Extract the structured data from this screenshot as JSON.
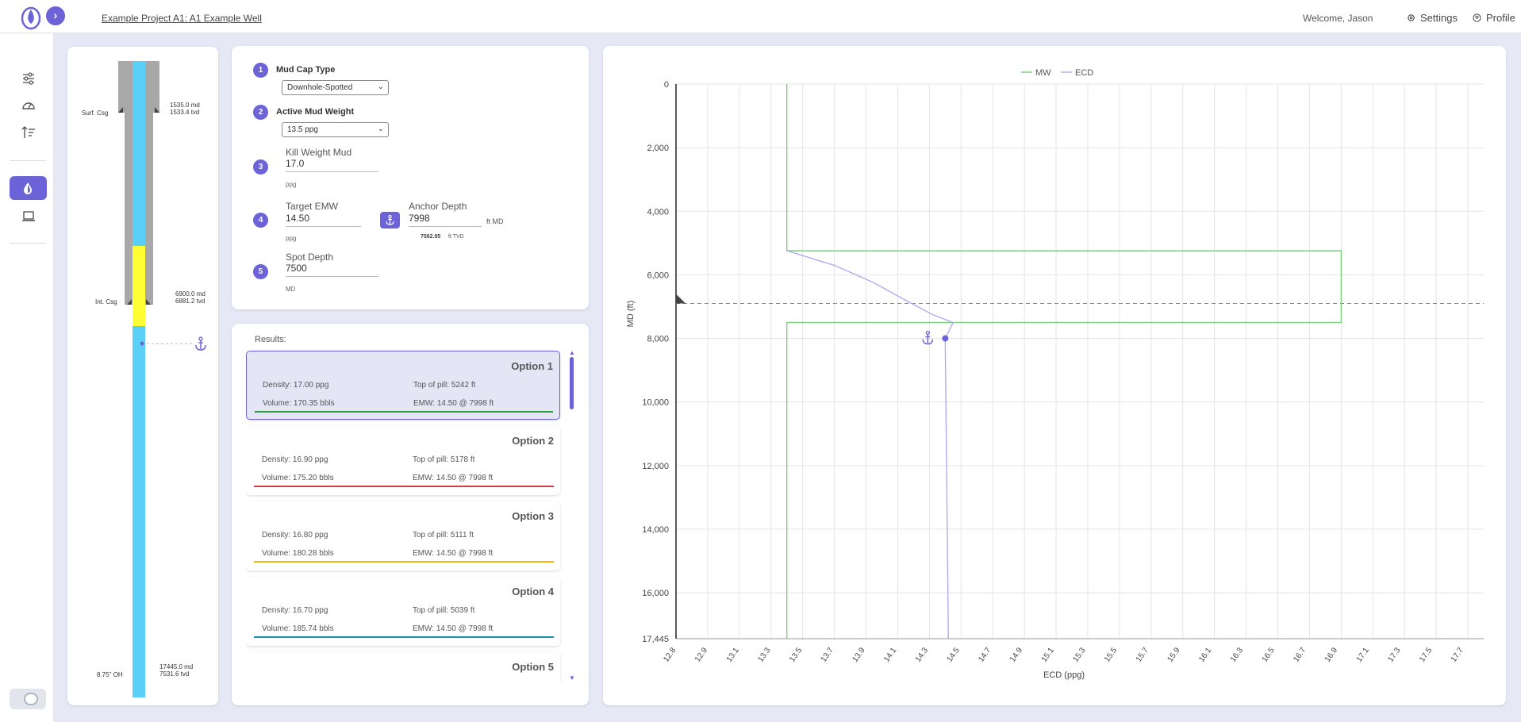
{
  "header": {
    "project_title": "Example Project A1: A1 Example Well",
    "welcome": "Welcome, Jason",
    "settings_label": "Settings",
    "profile_label": "Profile"
  },
  "sidebar": {
    "items": [
      {
        "icon": "sliders-icon"
      },
      {
        "icon": "speedometer-icon"
      },
      {
        "icon": "sort-icon"
      },
      {
        "icon": "drop-icon",
        "active": true
      },
      {
        "icon": "laptop-icon"
      }
    ],
    "accent": "#6c63d9"
  },
  "wellbore": {
    "surf_csg": {
      "label": "Surf. Csg",
      "md": "1535.0 md",
      "tvd": "1533.4 tvd"
    },
    "int_csg": {
      "label": "Int. Csg",
      "md": "6900.0 md",
      "tvd": "6881.2 tvd"
    },
    "oh": {
      "label": "8.75\" OH",
      "md": "17445.0 md",
      "tvd": "7531.6 tvd"
    },
    "colors": {
      "casing": "#a8a8a8",
      "mud": "#5ad0f6",
      "pill": "#ffff33",
      "anchor": "#6c63d9"
    }
  },
  "form": {
    "steps": [
      {
        "num": "1",
        "title": "Mud Cap Type",
        "value": "Downhole-Spotted"
      },
      {
        "num": "2",
        "title": "Active Mud Weight",
        "value": "13.5 ppg"
      },
      {
        "num": "3",
        "label": "Kill Weight Mud",
        "value": "17.0",
        "unit": "ppg"
      },
      {
        "num": "4",
        "label": "Target EMW",
        "value": "14.50",
        "unit": "ppg"
      },
      {
        "num": "5",
        "label": "Spot Depth",
        "value": "7500",
        "unit": "MD"
      }
    ],
    "anchor": {
      "label": "Anchor Depth",
      "value": "7998",
      "unit": "ft MD",
      "tvd_value": "7562.95",
      "tvd_unit": "ft TVD"
    }
  },
  "results": {
    "label": "Results:",
    "options": [
      {
        "title": "Option 1",
        "density": "Density: 17.00 ppg",
        "top": "Top of pill: 5242 ft",
        "volume": "Volume: 170.35 bbls",
        "emw": "EMW: 14.50 @ 7998 ft",
        "color": "#2e9e3e",
        "selected": true
      },
      {
        "title": "Option 2",
        "density": "Density: 16.90 ppg",
        "top": "Top of pill: 5178 ft",
        "volume": "Volume: 175.20 bbls",
        "emw": "EMW: 14.50 @ 7998 ft",
        "color": "#d63b4a"
      },
      {
        "title": "Option 3",
        "density": "Density: 16.80 ppg",
        "top": "Top of pill: 5111 ft",
        "volume": "Volume: 180.28 bbls",
        "emw": "EMW: 14.50 @ 7998 ft",
        "color": "#f2b705"
      },
      {
        "title": "Option 4",
        "density": "Density: 16.70 ppg",
        "top": "Top of pill: 5039 ft",
        "volume": "Volume: 185.74 bbls",
        "emw": "EMW: 14.50 @ 7998 ft",
        "color": "#1f8fb0"
      },
      {
        "title": "Option 5"
      }
    ]
  },
  "chart_data": {
    "type": "line",
    "legend": [
      "MW",
      "ECD"
    ],
    "legend_position": "top",
    "xlabel": "ECD (ppg)",
    "ylabel": "MD (ft)",
    "xlim": [
      12.8,
      17.9
    ],
    "ylim": [
      0,
      17445
    ],
    "y_inverted": true,
    "grid": true,
    "x_ticks": [
      "12.8",
      "12.9",
      "13.1",
      "13.3",
      "13.5",
      "13.7",
      "13.9",
      "14.1",
      "14.3",
      "14.5",
      "14.7",
      "14.9",
      "15.1",
      "15.3",
      "15.5",
      "15.7",
      "15.9",
      "16.1",
      "16.3",
      "16.5",
      "16.7",
      "16.9",
      "17.1",
      "17.3",
      "17.5",
      "17.7"
    ],
    "y_ticks": [
      {
        "v": 0,
        "label": "0"
      },
      {
        "v": 2000,
        "label": "2,000"
      },
      {
        "v": 4000,
        "label": "4,000"
      },
      {
        "v": 6000,
        "label": "6,000"
      },
      {
        "v": 8000,
        "label": "8,000"
      },
      {
        "v": 10000,
        "label": "10,000"
      },
      {
        "v": 12000,
        "label": "12,000"
      },
      {
        "v": 14000,
        "label": "14,000"
      },
      {
        "v": 16000,
        "label": "16,000"
      },
      {
        "v": 17445,
        "label": "17,445"
      }
    ],
    "series": [
      {
        "name": "MW",
        "color": "#7bd37f",
        "points": [
          [
            13.5,
            0
          ],
          [
            13.5,
            5242
          ],
          [
            17.0,
            5242
          ],
          [
            17.0,
            7500
          ],
          [
            13.5,
            7500
          ],
          [
            13.5,
            17445
          ]
        ]
      },
      {
        "name": "ECD",
        "color": "#b3aaf0",
        "points": [
          [
            13.5,
            5242
          ],
          [
            13.8,
            5700
          ],
          [
            14.05,
            6250
          ],
          [
            14.25,
            6800
          ],
          [
            14.42,
            7250
          ],
          [
            14.55,
            7500
          ],
          [
            14.5,
            7998
          ],
          [
            14.52,
            17445
          ]
        ]
      }
    ],
    "casing_shoe_md": 6900,
    "anchor": {
      "x": 14.5,
      "y": 7998
    }
  }
}
